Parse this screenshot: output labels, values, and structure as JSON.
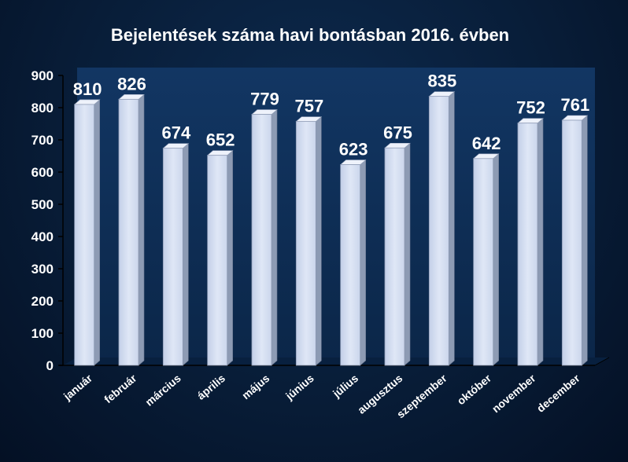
{
  "chart_data": {
    "type": "bar",
    "title": "Bejelentések száma havi bontásban 2016. évben",
    "xlabel": "",
    "ylabel": "",
    "categories": [
      "január",
      "február",
      "március",
      "április",
      "május",
      "június",
      "július",
      "augusztus",
      "szeptember",
      "október",
      "november",
      "december"
    ],
    "values": [
      810,
      826,
      674,
      652,
      779,
      757,
      623,
      675,
      835,
      642,
      752,
      761
    ],
    "ylim": [
      0,
      900
    ],
    "yticks": [
      "0",
      "100",
      "200",
      "300",
      "400",
      "500",
      "600",
      "700",
      "800",
      "900"
    ],
    "grid": false,
    "legend": "none",
    "colors": {
      "bar_front": "#d4def2",
      "bar_side": "#8d9bb4",
      "bar_top": "#eef2fb",
      "plot_wall": "#0f2f59",
      "text": "#ffffff"
    }
  }
}
